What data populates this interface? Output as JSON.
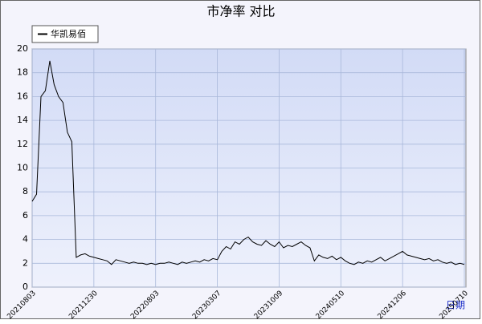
{
  "chart_data": {
    "type": "line",
    "title": "市净率 对比",
    "xlabel": "日期",
    "categories": [
      "20210803",
      null,
      null,
      null,
      null,
      null,
      null,
      null,
      null,
      null,
      null,
      null,
      null,
      null,
      "20211230",
      null,
      null,
      null,
      null,
      null,
      null,
      null,
      null,
      null,
      null,
      null,
      null,
      null,
      "20220803",
      null,
      null,
      null,
      null,
      null,
      null,
      null,
      null,
      null,
      null,
      null,
      null,
      null,
      "20230307",
      null,
      null,
      null,
      null,
      null,
      null,
      null,
      null,
      null,
      null,
      null,
      null,
      null,
      "20231009",
      null,
      null,
      null,
      null,
      null,
      null,
      null,
      null,
      null,
      null,
      null,
      null,
      null,
      "20240510",
      null,
      null,
      null,
      null,
      null,
      null,
      null,
      null,
      null,
      null,
      null,
      null,
      null,
      "20241206",
      null,
      null,
      null,
      null,
      null,
      null,
      null,
      null,
      null,
      null,
      null,
      null,
      null,
      "20250710"
    ],
    "series": [
      {
        "name": "华凯易佰",
        "color": "#000000",
        "values": [
          7.2,
          7.8,
          16,
          16.5,
          19,
          17,
          16,
          15.5,
          13,
          12.2,
          2.5,
          2.7,
          2.8,
          2.6,
          2.5,
          2.4,
          2.3,
          2.2,
          1.9,
          2.3,
          2.2,
          2.1,
          2.0,
          2.1,
          2.0,
          2.0,
          1.9,
          2.0,
          1.9,
          2.0,
          2.0,
          2.1,
          2.0,
          1.9,
          2.1,
          2.0,
          2.1,
          2.2,
          2.1,
          2.3,
          2.2,
          2.4,
          2.3,
          3.0,
          3.4,
          3.2,
          3.8,
          3.6,
          4.0,
          4.2,
          3.8,
          3.6,
          3.5,
          3.9,
          3.6,
          3.4,
          3.8,
          3.3,
          3.5,
          3.4,
          3.6,
          3.8,
          3.5,
          3.3,
          2.2,
          2.7,
          2.5,
          2.4,
          2.6,
          2.3,
          2.5,
          2.2,
          2.0,
          1.9,
          2.1,
          2.0,
          2.2,
          2.1,
          2.3,
          2.5,
          2.2,
          2.4,
          2.6,
          2.8,
          3.0,
          2.7,
          2.6,
          2.5,
          2.4,
          2.3,
          2.4,
          2.2,
          2.3,
          2.1,
          2.0,
          2.1,
          1.9,
          2.0,
          1.9
        ]
      }
    ],
    "ylim": [
      0,
      20
    ],
    "yticks": [
      0,
      2,
      4,
      6,
      8,
      10,
      12,
      14,
      16,
      18,
      20
    ],
    "grid": true
  }
}
